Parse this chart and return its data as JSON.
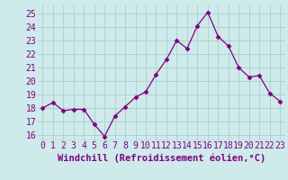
{
  "x": [
    0,
    1,
    2,
    3,
    4,
    5,
    6,
    7,
    8,
    9,
    10,
    11,
    12,
    13,
    14,
    15,
    16,
    17,
    18,
    19,
    20,
    21,
    22,
    23
  ],
  "y": [
    18.0,
    18.4,
    17.8,
    17.9,
    17.9,
    16.8,
    15.9,
    17.4,
    18.1,
    18.8,
    19.2,
    20.5,
    21.6,
    23.0,
    22.4,
    24.1,
    25.1,
    23.3,
    22.6,
    21.0,
    20.3,
    20.4,
    19.1,
    18.5
  ],
  "line_color": "#800080",
  "marker": "D",
  "marker_size": 2.5,
  "bg_color": "#ceeaea",
  "grid_color": "#aacece",
  "xlabel": "Windchill (Refroidissement éolien,°C)",
  "xlabel_fontsize": 7.5,
  "ylabel_ticks": [
    16,
    17,
    18,
    19,
    20,
    21,
    22,
    23,
    24,
    25
  ],
  "xtick_labels": [
    "0",
    "1",
    "2",
    "3",
    "4",
    "5",
    "6",
    "7",
    "8",
    "9",
    "10",
    "11",
    "12",
    "13",
    "14",
    "15",
    "16",
    "17",
    "18",
    "19",
    "20",
    "21",
    "22",
    "23"
  ],
  "ylim": [
    15.6,
    25.6
  ],
  "xlim": [
    -0.5,
    23.5
  ],
  "tick_fontsize": 7,
  "tick_color": "#800080"
}
